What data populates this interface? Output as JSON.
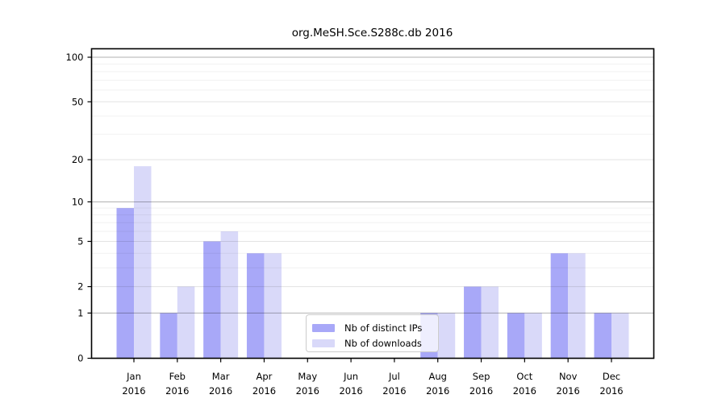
{
  "chart_data": {
    "type": "bar",
    "title": "org.MeSH.Sce.S288c.db 2016",
    "year_label": "2016",
    "categories": [
      "Jan",
      "Feb",
      "Mar",
      "Apr",
      "May",
      "Jun",
      "Jul",
      "Aug",
      "Sep",
      "Oct",
      "Nov",
      "Dec"
    ],
    "series": [
      {
        "name": "Nb of distinct IPs",
        "color": "#a8a8f8",
        "values": [
          9,
          1,
          5,
          4,
          0,
          0,
          0,
          1,
          2,
          1,
          4,
          1
        ]
      },
      {
        "name": "Nb of downloads",
        "color": "#d9d9f9",
        "values": [
          18,
          2,
          6,
          4,
          0,
          0,
          0,
          1,
          2,
          1,
          4,
          1
        ]
      }
    ],
    "xlabel": "",
    "ylabel": "",
    "yscale": "log10(1+x)",
    "yticks": [
      0,
      1,
      2,
      5,
      10,
      20,
      50,
      100
    ],
    "ylim": [
      0,
      100
    ],
    "grid": true,
    "grid_decades": [
      1,
      10,
      100
    ],
    "grid_mid": [
      2,
      5,
      20,
      50
    ],
    "grid_minor": [
      3,
      4,
      6,
      7,
      8,
      9,
      30,
      40,
      60,
      70,
      80,
      90
    ],
    "legend_position": "bottom-center"
  }
}
